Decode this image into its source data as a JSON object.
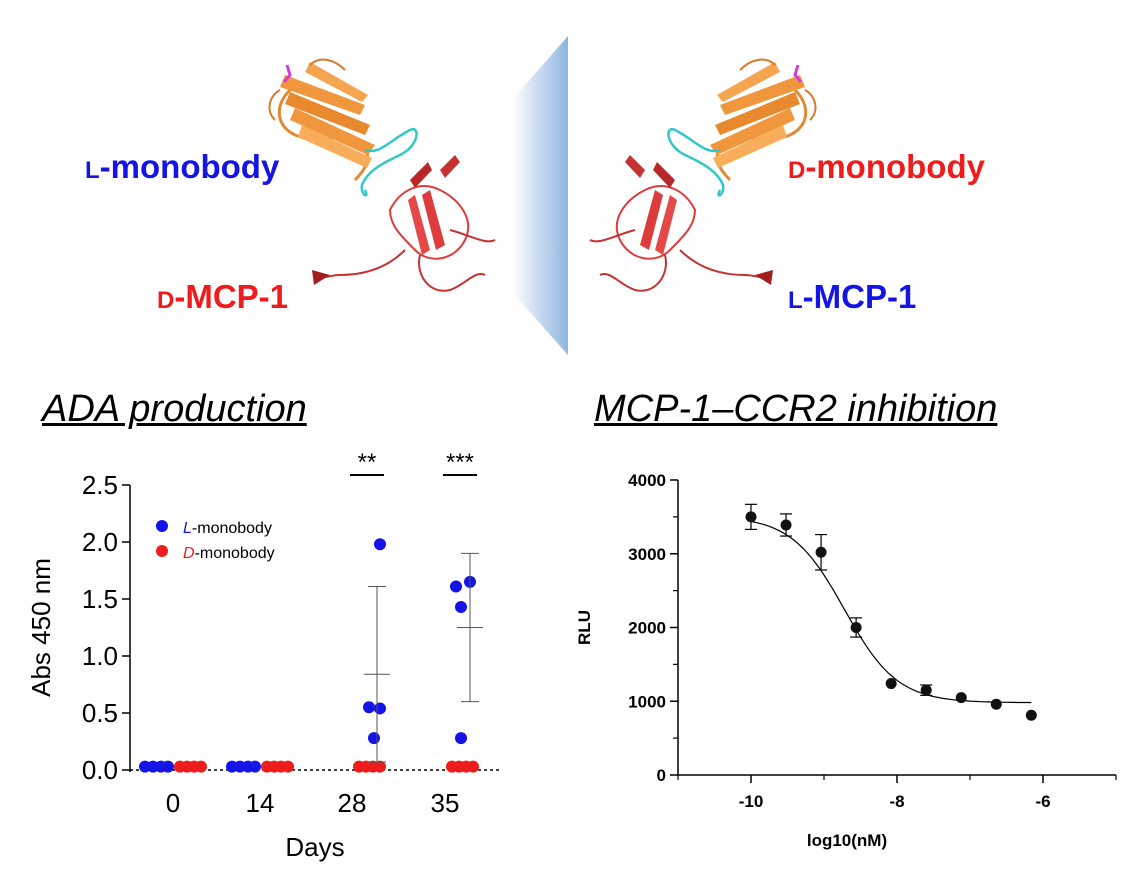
{
  "labels": {
    "left_top": {
      "prefix": "L",
      "rest": "-monobody",
      "color": "#1414e6"
    },
    "left_bottom": {
      "prefix": "D",
      "rest": "-MCP-1",
      "color": "#ee1c1c"
    },
    "right_top": {
      "prefix": "D",
      "rest": "-monobody",
      "color": "#ee1c1c"
    },
    "right_bottom": {
      "prefix": "L",
      "rest": "-MCP-1",
      "color": "#1414e6"
    }
  },
  "section_titles": {
    "left": "ADA production",
    "right": "MCP-1–CCR2 inhibition"
  },
  "colors": {
    "l_color": "#1414e6",
    "d_color": "#ee1c1c",
    "protein_orange": "#f0963c",
    "protein_red": "#dc3c3c",
    "loop_cyan": "#30c8c8",
    "mirror_blue": "#9fc0e6"
  },
  "chart_data": [
    {
      "type": "scatter",
      "xlabel": "Days",
      "ylabel": "Abs 450 nm",
      "ylim": [
        0,
        2.5
      ],
      "yticks": [
        "0.0",
        "0.5",
        "1.0",
        "1.5",
        "2.0",
        "2.5"
      ],
      "categories": [
        "0",
        "14",
        "28",
        "35"
      ],
      "legend": [
        {
          "prefix": "L",
          "rest": "-monobody",
          "color": "#1414e6"
        },
        {
          "prefix": "D",
          "rest": "-monobody",
          "color": "#ee1c1c"
        }
      ],
      "legend_position": "top-left",
      "significance": [
        {
          "category": "28",
          "label": "**"
        },
        {
          "category": "35",
          "label": "***"
        }
      ],
      "series": [
        {
          "legend_index": 0,
          "color": "#1414e6",
          "points": {
            "0": [
              0.03,
              0.03,
              0.03,
              0.03
            ],
            "14": [
              0.03,
              0.03,
              0.03,
              0.03
            ],
            "28": [
              1.98,
              0.55,
              0.54,
              0.28
            ],
            "35": [
              1.61,
              1.65,
              1.43,
              0.28
            ]
          },
          "mean": {
            "28": 0.84,
            "35": 1.25
          },
          "sd_low": {
            "28": 0.07,
            "35": 0.6
          },
          "sd_high": {
            "28": 1.61,
            "35": 1.9
          }
        },
        {
          "legend_index": 1,
          "color": "#ee1c1c",
          "points": {
            "0": [
              0.03,
              0.03,
              0.03,
              0.03
            ],
            "14": [
              0.03,
              0.03,
              0.03,
              0.03
            ],
            "28": [
              0.03,
              0.03,
              0.03,
              0.03
            ],
            "35": [
              0.03,
              0.03,
              0.03,
              0.03
            ]
          }
        }
      ]
    },
    {
      "type": "scatter",
      "xlabel": "log10(nM)",
      "ylabel": "RLU",
      "xlim": [
        -11,
        -5
      ],
      "ylim": [
        0,
        4000
      ],
      "xticks": [
        {
          "value": -10,
          "label": "-10"
        },
        {
          "value": -8,
          "label": "-8"
        },
        {
          "value": -6,
          "label": "-6"
        }
      ],
      "yticks": [
        {
          "value": 0,
          "label": "0"
        },
        {
          "value": 1000,
          "label": "1000"
        },
        {
          "value": 2000,
          "label": "2000"
        },
        {
          "value": 3000,
          "label": "3000"
        },
        {
          "value": 4000,
          "label": "4000"
        }
      ],
      "points": [
        {
          "x": -10.0,
          "y": 3500,
          "err": 170
        },
        {
          "x": -9.52,
          "y": 3390,
          "err": 150
        },
        {
          "x": -9.04,
          "y": 3020,
          "err": 240
        },
        {
          "x": -8.56,
          "y": 2000,
          "err": 130
        },
        {
          "x": -8.08,
          "y": 1240,
          "err": 0
        },
        {
          "x": -7.6,
          "y": 1150,
          "err": 70
        },
        {
          "x": -7.12,
          "y": 1050,
          "err": 0
        },
        {
          "x": -6.64,
          "y": 960,
          "err": 0
        },
        {
          "x": -6.16,
          "y": 810,
          "err": 0
        }
      ],
      "fit": {
        "top": 3510,
        "bottom": 980,
        "logIC50": -8.72,
        "hill": 1.2
      }
    }
  ]
}
